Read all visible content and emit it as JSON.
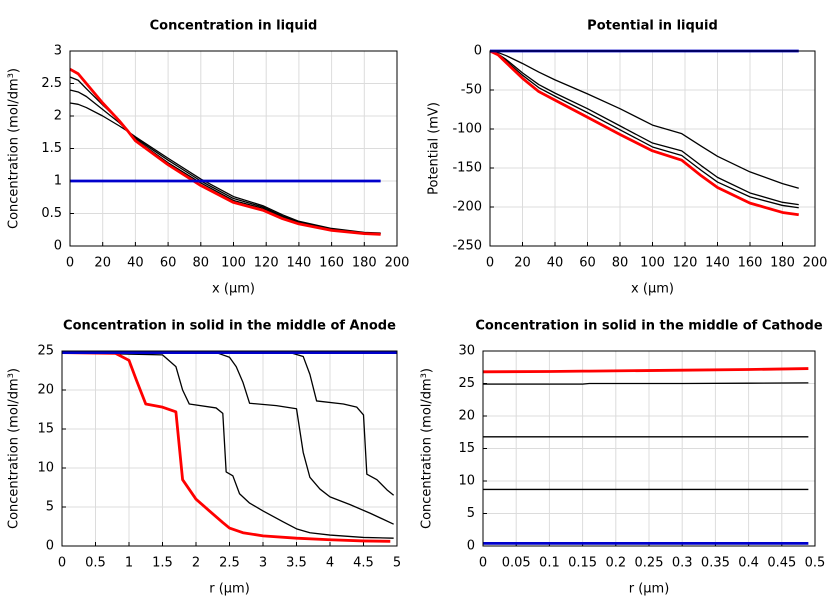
{
  "chart_data": [
    {
      "type": "line",
      "title": "Concentration in liquid",
      "xlabel": "x (µm)",
      "ylabel": "Concentration (mol/dm³)",
      "xlim": [
        0,
        200
      ],
      "xticks": [
        0,
        20,
        40,
        60,
        80,
        100,
        120,
        140,
        160,
        180,
        200
      ],
      "ylim": [
        0,
        3
      ],
      "yticks": [
        0,
        0.5,
        1,
        1.5,
        2,
        2.5,
        3
      ],
      "grid": true,
      "x": [
        0,
        5,
        10,
        20,
        30,
        35,
        40,
        60,
        80,
        100,
        118,
        130,
        140,
        160,
        180,
        190
      ],
      "series": [
        {
          "color": "#000000",
          "width": 1.3,
          "values": [
            2.2,
            2.18,
            2.13,
            2.0,
            1.85,
            1.77,
            1.68,
            1.35,
            1.03,
            0.76,
            0.62,
            0.48,
            0.38,
            0.27,
            0.21,
            0.2
          ]
        },
        {
          "color": "#000000",
          "width": 1.3,
          "values": [
            2.4,
            2.37,
            2.3,
            2.1,
            1.9,
            1.78,
            1.66,
            1.32,
            1.0,
            0.73,
            0.6,
            0.46,
            0.37,
            0.26,
            0.2,
            0.19
          ]
        },
        {
          "color": "#000000",
          "width": 1.3,
          "values": [
            2.6,
            2.55,
            2.42,
            2.17,
            1.93,
            1.78,
            1.64,
            1.28,
            0.97,
            0.7,
            0.58,
            0.44,
            0.36,
            0.25,
            0.2,
            0.19
          ]
        },
        {
          "color": "#ff0000",
          "width": 2.8,
          "values": [
            2.72,
            2.65,
            2.5,
            2.2,
            1.93,
            1.78,
            1.62,
            1.25,
            0.93,
            0.67,
            0.55,
            0.42,
            0.34,
            0.24,
            0.19,
            0.18
          ]
        },
        {
          "color": "#0000cc",
          "width": 2.8,
          "values": [
            1,
            1,
            1,
            1,
            1,
            1,
            1,
            1,
            1,
            1,
            1,
            1,
            1,
            1,
            1,
            1
          ]
        }
      ]
    },
    {
      "type": "line",
      "title": "Potential in liquid",
      "xlabel": "x (µm)",
      "ylabel": "Potential (mV)",
      "xlim": [
        0,
        200
      ],
      "xticks": [
        0,
        20,
        40,
        60,
        80,
        100,
        120,
        140,
        160,
        180,
        200
      ],
      "ylim": [
        -250,
        0
      ],
      "yticks": [
        -250,
        -200,
        -150,
        -100,
        -50,
        0
      ],
      "grid": true,
      "x": [
        0,
        5,
        10,
        20,
        30,
        40,
        60,
        80,
        100,
        118,
        130,
        140,
        160,
        180,
        190
      ],
      "series": [
        {
          "color": "#000000",
          "width": 1.3,
          "values": [
            0,
            -2,
            -6,
            -16,
            -27,
            -37,
            -55,
            -74,
            -95,
            -106,
            -122,
            -135,
            -155,
            -170,
            -176
          ]
        },
        {
          "color": "#000000",
          "width": 1.3,
          "values": [
            0,
            -4,
            -11,
            -28,
            -43,
            -54,
            -74,
            -96,
            -118,
            -128,
            -147,
            -162,
            -182,
            -194,
            -197
          ]
        },
        {
          "color": "#000000",
          "width": 1.3,
          "values": [
            0,
            -4,
            -13,
            -31,
            -47,
            -58,
            -79,
            -101,
            -123,
            -134,
            -153,
            -168,
            -187,
            -198,
            -201
          ]
        },
        {
          "color": "#ff0000",
          "width": 2.8,
          "values": [
            0,
            -5,
            -15,
            -35,
            -52,
            -63,
            -85,
            -107,
            -128,
            -140,
            -160,
            -175,
            -195,
            -207,
            -210
          ]
        },
        {
          "color": "#0000cc",
          "width": 2.8,
          "values": [
            0,
            0,
            0,
            0,
            0,
            0,
            0,
            0,
            0,
            0,
            0,
            0,
            0,
            0,
            0
          ]
        }
      ]
    },
    {
      "type": "line",
      "title": "Concentration in solid in the middle of Anode",
      "xlabel": "r (µm)",
      "ylabel": "Concentration (mol/dm³)",
      "xlim": [
        0,
        5
      ],
      "xticks": [
        0,
        0.5,
        1,
        1.5,
        2,
        2.5,
        3,
        3.5,
        4,
        4.5,
        5
      ],
      "ylim": [
        0,
        25
      ],
      "yticks": [
        0,
        5,
        10,
        15,
        20,
        25
      ],
      "grid": true,
      "series": [
        {
          "color": "#000000",
          "width": 1.3,
          "x": [
            0,
            1.5,
            1.7,
            1.8,
            1.9,
            2.3,
            2.4,
            2.45,
            2.55,
            2.65,
            2.8,
            3,
            3.3,
            3.5,
            3.7,
            4,
            4.5,
            4.95
          ],
          "values": [
            24.8,
            24.5,
            23,
            20,
            18.2,
            17.7,
            17,
            9.5,
            9,
            6.7,
            5.5,
            4.5,
            3.1,
            2.2,
            1.7,
            1.4,
            1.1,
            1.0
          ]
        },
        {
          "color": "#000000",
          "width": 1.3,
          "x": [
            0,
            2.3,
            2.5,
            2.6,
            2.7,
            2.8,
            3.2,
            3.5,
            3.6,
            3.7,
            3.85,
            4,
            4.3,
            4.6,
            4.95
          ],
          "values": [
            24.8,
            24.8,
            24.2,
            23,
            21,
            18.3,
            18.0,
            17.6,
            12,
            8.8,
            7.3,
            6.3,
            5.3,
            4.2,
            2.8
          ]
        },
        {
          "color": "#000000",
          "width": 1.3,
          "x": [
            0,
            3.4,
            3.6,
            3.7,
            3.8,
            4.2,
            4.4,
            4.5,
            4.55,
            4.7,
            4.85,
            4.95
          ],
          "values": [
            24.8,
            24.8,
            24.3,
            22,
            18.6,
            18.2,
            17.8,
            16.8,
            9.2,
            8.5,
            7.2,
            6.5
          ]
        },
        {
          "color": "#ff0000",
          "width": 2.8,
          "x": [
            0,
            0.8,
            1,
            1.1,
            1.25,
            1.5,
            1.7,
            1.8,
            2,
            2.2,
            2.4,
            2.5,
            2.7,
            3,
            3.5,
            4,
            4.5,
            4.9
          ],
          "values": [
            24.8,
            24.7,
            23.8,
            21.5,
            18.2,
            17.8,
            17.2,
            8.5,
            6,
            4.5,
            3.0,
            2.3,
            1.7,
            1.3,
            1.0,
            0.8,
            0.65,
            0.6
          ]
        },
        {
          "color": "#0000cc",
          "width": 2.8,
          "x": [
            0,
            5
          ],
          "values": [
            24.8,
            24.8
          ]
        }
      ]
    },
    {
      "type": "line",
      "title": "Concentration in solid in the middle of Cathode",
      "xlabel": "r (µm)",
      "ylabel": "Concentration (mol/dm³)",
      "xlim": [
        0,
        0.5
      ],
      "xticks": [
        0,
        0.05,
        0.1,
        0.15,
        0.2,
        0.25,
        0.3,
        0.35,
        0.4,
        0.45,
        0.5
      ],
      "ylim": [
        0,
        30
      ],
      "yticks": [
        0,
        5,
        10,
        15,
        20,
        25,
        30
      ],
      "grid": true,
      "x": [
        0,
        0.1,
        0.15,
        0.16,
        0.3,
        0.4,
        0.49
      ],
      "series": [
        {
          "color": "#000000",
          "width": 1.3,
          "values": [
            24.9,
            24.9,
            24.9,
            25.0,
            25.0,
            25.05,
            25.1
          ]
        },
        {
          "color": "#000000",
          "width": 1.3,
          "values": [
            16.8,
            16.8,
            16.8,
            16.8,
            16.8,
            16.8,
            16.8
          ]
        },
        {
          "color": "#000000",
          "width": 1.3,
          "values": [
            8.7,
            8.7,
            8.7,
            8.7,
            8.7,
            8.7,
            8.7
          ]
        },
        {
          "color": "#ff0000",
          "width": 2.8,
          "values": [
            26.8,
            26.85,
            26.9,
            26.9,
            27.05,
            27.15,
            27.3
          ]
        },
        {
          "color": "#0000cc",
          "width": 2.8,
          "values": [
            0.4,
            0.4,
            0.4,
            0.4,
            0.4,
            0.4,
            0.4
          ]
        }
      ]
    }
  ]
}
